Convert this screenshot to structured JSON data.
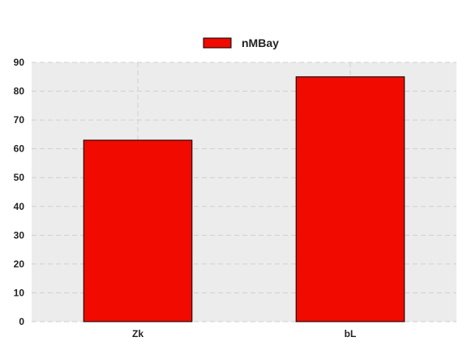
{
  "chart_data": {
    "type": "bar",
    "categories": [
      "Zk",
      "bL"
    ],
    "series": [
      {
        "name": "nMBay",
        "values": [
          63,
          85
        ],
        "color": "#f00a00"
      }
    ],
    "ylim": [
      0,
      90
    ],
    "yticks": [
      0,
      10,
      20,
      30,
      40,
      50,
      60,
      70,
      80,
      90
    ],
    "grid": true,
    "legend": "top-center",
    "colors": {
      "plot_background": "#ececec",
      "grid": "#cfcfcf",
      "bar_edge": "#000000"
    }
  }
}
